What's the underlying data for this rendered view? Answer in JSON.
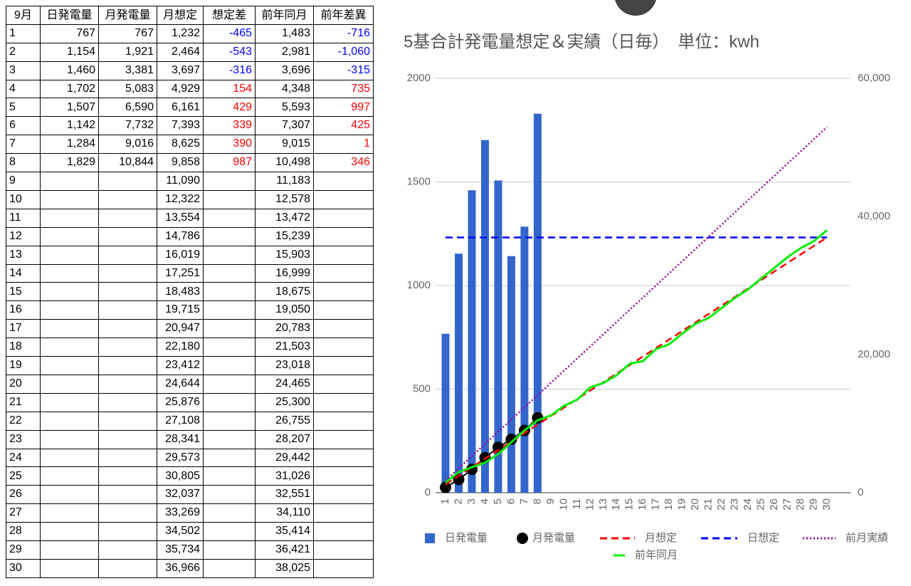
{
  "table": {
    "header": [
      "9月",
      "日発電量",
      "月発電量",
      "月想定",
      "想定差",
      "前年同月",
      "前年差異"
    ],
    "rows": [
      [
        "1",
        "767",
        "767",
        "1,232",
        "-465",
        "1,483",
        "-716"
      ],
      [
        "2",
        "1,154",
        "1,921",
        "2,464",
        "-543",
        "2,981",
        "-1,060"
      ],
      [
        "3",
        "1,460",
        "3,381",
        "3,697",
        "-316",
        "3,696",
        "-315"
      ],
      [
        "4",
        "1,702",
        "5,083",
        "4,929",
        "154",
        "4,348",
        "735"
      ],
      [
        "5",
        "1,507",
        "6,590",
        "6,161",
        "429",
        "5,593",
        "997"
      ],
      [
        "6",
        "1,142",
        "7,732",
        "7,393",
        "339",
        "7,307",
        "425"
      ],
      [
        "7",
        "1,284",
        "9,016",
        "8,625",
        "390",
        "9,015",
        "1"
      ],
      [
        "8",
        "1,829",
        "10,844",
        "9,858",
        "987",
        "10,498",
        "346"
      ],
      [
        "9",
        null,
        null,
        "11,090",
        null,
        "11,183",
        null
      ],
      [
        "10",
        null,
        null,
        "12,322",
        null,
        "12,578",
        null
      ],
      [
        "11",
        null,
        null,
        "13,554",
        null,
        "13,472",
        null
      ],
      [
        "12",
        null,
        null,
        "14,786",
        null,
        "15,239",
        null
      ],
      [
        "13",
        null,
        null,
        "16,019",
        null,
        "15,903",
        null
      ],
      [
        "14",
        null,
        null,
        "17,251",
        null,
        "16,999",
        null
      ],
      [
        "15",
        null,
        null,
        "18,483",
        null,
        "18,675",
        null
      ],
      [
        "16",
        null,
        null,
        "19,715",
        null,
        "19,050",
        null
      ],
      [
        "17",
        null,
        null,
        "20,947",
        null,
        "20,783",
        null
      ],
      [
        "18",
        null,
        null,
        "22,180",
        null,
        "21,503",
        null
      ],
      [
        "19",
        null,
        null,
        "23,412",
        null,
        "23,018",
        null
      ],
      [
        "20",
        null,
        null,
        "24,644",
        null,
        "24,465",
        null
      ],
      [
        "21",
        null,
        null,
        "25,876",
        null,
        "25,300",
        null
      ],
      [
        "22",
        null,
        null,
        "27,108",
        null,
        "26,755",
        null
      ],
      [
        "23",
        null,
        null,
        "28,341",
        null,
        "28,207",
        null
      ],
      [
        "24",
        null,
        null,
        "29,573",
        null,
        "29,442",
        null
      ],
      [
        "25",
        null,
        null,
        "30,805",
        null,
        "31,026",
        null
      ],
      [
        "26",
        null,
        null,
        "32,037",
        null,
        "32,551",
        null
      ],
      [
        "27",
        null,
        null,
        "33,269",
        null,
        "34,110",
        null
      ],
      [
        "28",
        null,
        null,
        "34,502",
        null,
        "35,414",
        null
      ],
      [
        "29",
        null,
        null,
        "35,734",
        null,
        "36,421",
        null
      ],
      [
        "30",
        null,
        null,
        "36,966",
        null,
        "38,025",
        null
      ]
    ]
  },
  "chart_data": {
    "type": "combo",
    "title": "5基合計発電量想定＆実績（日毎）　単位：kwh",
    "categories": [
      "1",
      "2",
      "3",
      "4",
      "5",
      "6",
      "7",
      "8",
      "9",
      "10",
      "11",
      "12",
      "13",
      "14",
      "15",
      "16",
      "17",
      "18",
      "19",
      "20",
      "21",
      "22",
      "23",
      "24",
      "25",
      "26",
      "27",
      "28",
      "29",
      "30"
    ],
    "ylim": [
      0,
      2000
    ],
    "yticks": [
      0,
      500,
      1000,
      1500,
      2000
    ],
    "y2lim": [
      0,
      60000
    ],
    "y2ticks": [
      0,
      {
        "value": 20000,
        "label": "20,000"
      },
      {
        "value": 40000,
        "label": "40,000"
      },
      {
        "value": 60000,
        "label": "60,000"
      }
    ],
    "grid": true,
    "legend": "bottom",
    "series": [
      {
        "name": "日発電量",
        "kind": "bar",
        "color": "#3366cc",
        "values": [
          767,
          1154,
          1460,
          1702,
          1507,
          1142,
          1284,
          1829,
          null,
          null,
          null,
          null,
          null,
          null,
          null,
          null,
          null,
          null,
          null,
          null,
          null,
          null,
          null,
          null,
          null,
          null,
          null,
          null,
          null,
          null
        ]
      },
      {
        "name": "月発電量",
        "kind": "dots",
        "color": "#000000",
        "axis": "y2",
        "values": [
          767,
          1921,
          3381,
          5083,
          6590,
          7732,
          9016,
          10844,
          null,
          null,
          null,
          null,
          null,
          null,
          null,
          null,
          null,
          null,
          null,
          null,
          null,
          null,
          null,
          null,
          null,
          null,
          null,
          null,
          null,
          null
        ]
      },
      {
        "name": "月想定",
        "kind": "dashed",
        "color": "#ff0000",
        "axis": "y2",
        "values": [
          1232,
          2464,
          3697,
          4929,
          6161,
          7393,
          8625,
          9858,
          11090,
          12322,
          13554,
          14786,
          16019,
          17251,
          18483,
          19715,
          20947,
          22180,
          23412,
          24644,
          25876,
          27108,
          28341,
          29573,
          30805,
          32037,
          33269,
          34502,
          35734,
          36966
        ]
      },
      {
        "name": "日想定",
        "kind": "dashed",
        "color": "#0000ff",
        "values": [
          1232,
          1232,
          1232,
          1232,
          1232,
          1232,
          1232,
          1232,
          1232,
          1232,
          1232,
          1232,
          1232,
          1232,
          1232,
          1232,
          1232,
          1232,
          1232,
          1232,
          1232,
          1232,
          1232,
          1232,
          1232,
          1232,
          1232,
          1232,
          1232,
          1232
        ]
      },
      {
        "name": "前月実績",
        "kind": "dotted",
        "color": "#990099",
        "axis": "y2",
        "values": [
          1760,
          3530,
          5300,
          7060,
          8830,
          10590,
          12360,
          14120,
          15890,
          17650,
          19420,
          21180,
          22950,
          24710,
          26480,
          28240,
          30010,
          31770,
          33540,
          35300,
          37070,
          38830,
          40600,
          42360,
          44130,
          45890,
          47660,
          49420,
          51190,
          52950
        ]
      },
      {
        "name": "前年同月",
        "kind": "line",
        "color": "#00ee00",
        "axis": "y2",
        "values": [
          1483,
          2981,
          3696,
          4348,
          5593,
          7307,
          9015,
          10498,
          11183,
          12578,
          13472,
          15239,
          15903,
          16999,
          18675,
          19050,
          20783,
          21503,
          23018,
          24465,
          25300,
          26755,
          28207,
          29442,
          31026,
          32551,
          34110,
          35414,
          36421,
          38025
        ]
      }
    ]
  }
}
